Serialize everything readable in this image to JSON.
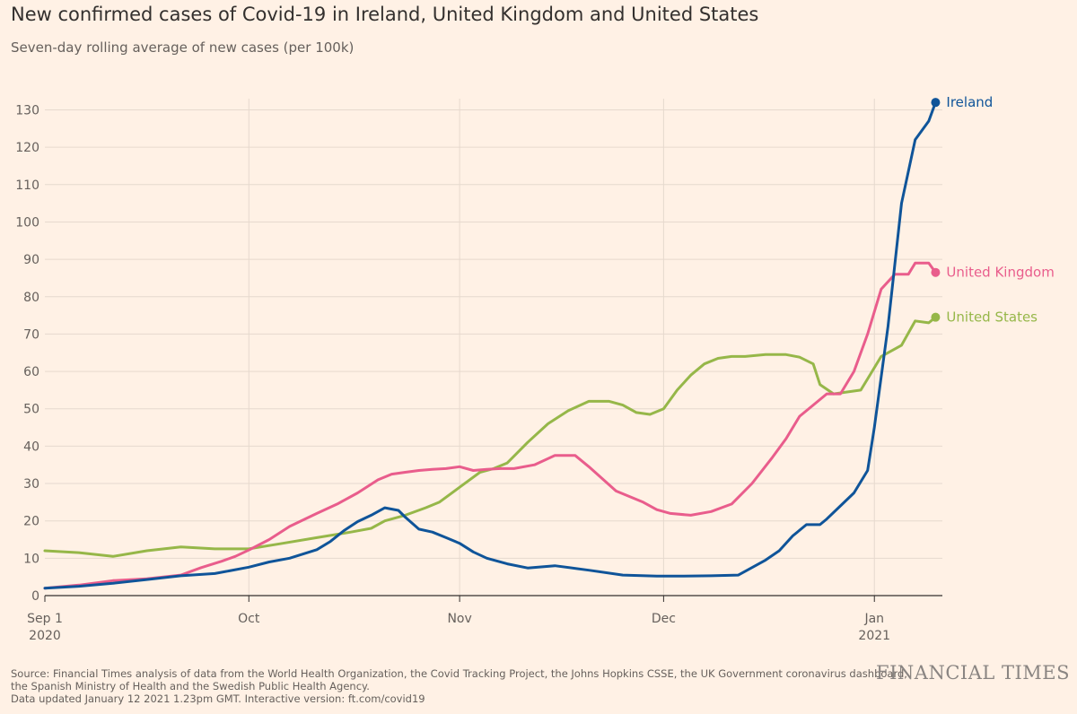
{
  "title": "New confirmed cases of Covid-19 in Ireland, United Kingdom and United States",
  "subtitle": "Seven-day rolling average of new cases (per 100k)",
  "source_lines": [
    "Source: Financial Times analysis of data from the World Health Organization, the Covid Tracking Project, the Johns Hopkins CSSE, the UK Government coronavirus dashboard,",
    "the Spanish Ministry of Health and the Swedish Public Health Agency.",
    "Data updated January 12 2021 1.23pm GMT. Interactive version: ft.com/covid19"
  ],
  "brand": "FINANCIAL TIMES",
  "chart_data": {
    "type": "line",
    "title": "New confirmed cases of Covid-19 in Ireland, United Kingdom and United States",
    "xlabel": "",
    "ylabel": "Seven-day rolling average of new cases (per 100k)",
    "x_unit": "days since 2020-09-01",
    "xlim": [
      0,
      132
    ],
    "ylim": [
      0,
      133
    ],
    "y_ticks": [
      0,
      10,
      20,
      30,
      40,
      50,
      60,
      70,
      80,
      90,
      100,
      110,
      120,
      130
    ],
    "x_ticks": [
      {
        "day": 0,
        "label": "Sep 1",
        "sub": "2020"
      },
      {
        "day": 30,
        "label": "Oct",
        "sub": ""
      },
      {
        "day": 61,
        "label": "Nov",
        "sub": ""
      },
      {
        "day": 91,
        "label": "Dec",
        "sub": ""
      },
      {
        "day": 122,
        "label": "Jan",
        "sub": "2021"
      }
    ],
    "grid": true,
    "series": [
      {
        "name": "Ireland",
        "color": "#0f5499",
        "x": [
          0,
          5,
          10,
          15,
          20,
          25,
          30,
          33,
          36,
          40,
          42,
          44,
          46,
          48,
          50,
          52,
          53,
          55,
          57,
          59,
          61,
          63,
          65,
          68,
          71,
          75,
          80,
          85,
          90,
          94,
          98,
          102,
          106,
          108,
          110,
          112,
          114,
          115,
          117,
          119,
          121,
          122,
          124,
          126,
          128,
          130,
          131
        ],
        "values": [
          2,
          2.5,
          3.3,
          4.3,
          5.3,
          5.9,
          7.6,
          9,
          10,
          12.3,
          14.5,
          17.4,
          19.8,
          21.5,
          23.5,
          22.8,
          21,
          17.8,
          17,
          15.5,
          14,
          11.7,
          10,
          8.5,
          7.4,
          8,
          6.8,
          5.5,
          5.2,
          5.2,
          5.3,
          5.5,
          9.5,
          12,
          16,
          19,
          19,
          20.5,
          24,
          27.5,
          33.5,
          45,
          72,
          105,
          122,
          127,
          132
        ]
      },
      {
        "name": "United Kingdom",
        "color": "#e95d8c",
        "x": [
          0,
          5,
          10,
          15,
          20,
          23,
          26,
          28,
          30,
          33,
          36,
          40,
          43,
          46,
          49,
          51,
          53,
          55,
          57,
          59,
          61,
          63,
          65,
          67,
          69,
          72,
          75,
          78,
          80,
          84,
          88,
          90,
          92,
          95,
          98,
          101,
          104,
          107,
          109,
          111,
          113,
          115,
          117,
          119,
          121,
          123,
          125,
          127,
          128,
          129,
          130,
          131
        ],
        "values": [
          2,
          2.8,
          4,
          4.5,
          5.5,
          7.5,
          9.2,
          10.5,
          12.2,
          15,
          18.5,
          22,
          24.5,
          27.5,
          31,
          32.5,
          33,
          33.5,
          33.8,
          34,
          34.5,
          33.5,
          33.8,
          34,
          34,
          35,
          37.5,
          37.5,
          34.5,
          28,
          25,
          23,
          22,
          21.5,
          22.5,
          24.5,
          30,
          37,
          42,
          48,
          51,
          54,
          54,
          60,
          70,
          82,
          86,
          86,
          89,
          89,
          89,
          86.5
        ]
      },
      {
        "name": "United States",
        "color": "#96b749",
        "x": [
          0,
          5,
          10,
          15,
          20,
          25,
          30,
          35,
          40,
          45,
          48,
          50,
          53,
          56,
          58,
          61,
          64,
          66,
          68,
          71,
          74,
          77,
          80,
          83,
          85,
          87,
          89,
          91,
          93,
          95,
          97,
          99,
          101,
          103,
          106,
          109,
          111,
          113,
          114,
          116,
          118,
          120,
          121,
          123,
          126,
          128,
          130,
          131
        ],
        "values": [
          12,
          11.5,
          10.5,
          12,
          13,
          12.5,
          12.5,
          14,
          15.5,
          17,
          18,
          20,
          21.5,
          23.5,
          25,
          29,
          33,
          34,
          35.5,
          41,
          46,
          49.5,
          52,
          52,
          51,
          49,
          48.5,
          50,
          55,
          59,
          62,
          63.5,
          64,
          64,
          64.5,
          64.5,
          63.8,
          62,
          56.5,
          54,
          54.5,
          55,
          58,
          64,
          67,
          73.5,
          73,
          74.5
        ]
      }
    ]
  }
}
